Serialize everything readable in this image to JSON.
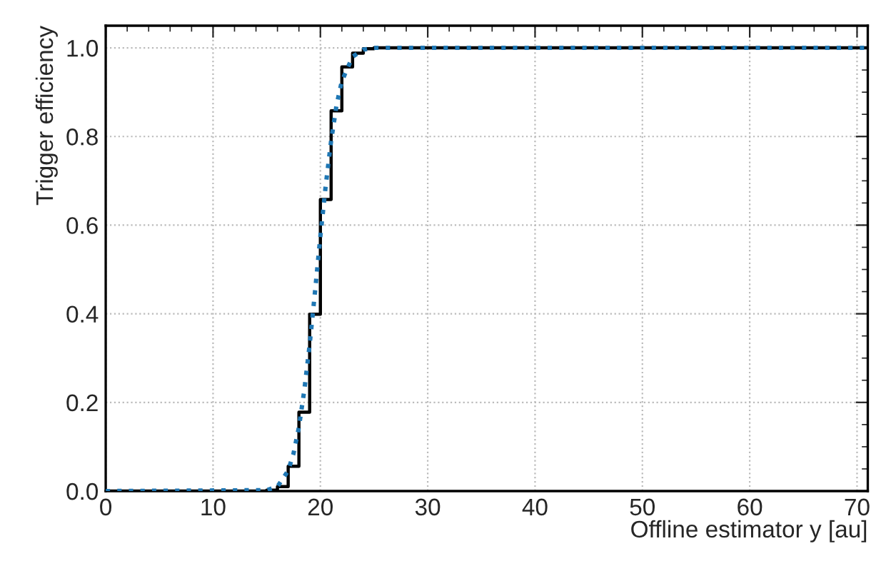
{
  "chart_data": {
    "type": "step",
    "xlabel": "Offline estimator y [au]",
    "ylabel": "Trigger efficiency",
    "xlim": [
      0,
      71
    ],
    "ylim": [
      0,
      1.05
    ],
    "xticks": [
      0,
      10,
      20,
      30,
      40,
      50,
      60,
      70
    ],
    "yticks": [
      {
        "value": 0,
        "label": "0.0"
      },
      {
        "value": 0.2,
        "label": "0.2"
      },
      {
        "value": 0.4,
        "label": "0.4"
      },
      {
        "value": 0.6,
        "label": "0.6"
      },
      {
        "value": 0.8,
        "label": "0.8"
      },
      {
        "value": 1.0,
        "label": "1.0"
      }
    ],
    "grid": true,
    "series": [
      {
        "color": "#000000",
        "line_style": "solid",
        "x": [
          0,
          15,
          16,
          17,
          18,
          19,
          20,
          21,
          22,
          23,
          24,
          25,
          71
        ],
        "values": [
          0,
          0.002,
          0.01,
          0.056,
          0.178,
          0.399,
          0.658,
          0.858,
          0.957,
          0.988,
          0.998,
          1.0,
          1.0
        ]
      },
      {
        "type": "line",
        "color": "#1f77b4",
        "line_style": "dotted",
        "x": [
          0,
          15,
          16,
          17,
          17.5,
          18,
          18.5,
          19,
          19.5,
          20,
          20.5,
          21,
          21.5,
          22,
          23,
          24,
          25,
          71
        ],
        "values": [
          0,
          0.002,
          0.01,
          0.046,
          0.085,
          0.144,
          0.227,
          0.33,
          0.45,
          0.575,
          0.69,
          0.79,
          0.87,
          0.925,
          0.98,
          0.996,
          1.0,
          1.0
        ]
      }
    ]
  }
}
